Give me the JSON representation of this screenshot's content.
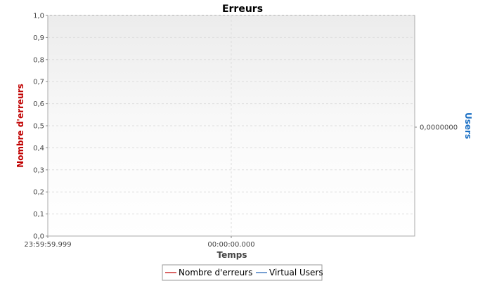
{
  "chart_data": {
    "type": "line",
    "title": "Erreurs",
    "xlabel": "Temps",
    "ylabel_left": "Nombre d'erreurs",
    "ylabel_right": "Users",
    "x_tick_labels": [
      "23:59:59.999",
      "00:00:00.000"
    ],
    "y_left_ticks": [
      0.0,
      0.1,
      0.2,
      0.3,
      0.4,
      0.5,
      0.6,
      0.7,
      0.8,
      0.9,
      1.0
    ],
    "y_left_tick_labels": [
      "0,0",
      "0,1",
      "0,2",
      "0,3",
      "0,4",
      "0,5",
      "0,6",
      "0,7",
      "0,8",
      "0,9",
      "1,0"
    ],
    "ylim_left": [
      0,
      1.0
    ],
    "y_right_ticks": [
      0
    ],
    "y_right_tick_labels": [
      "0,0000000"
    ],
    "grid": true,
    "legend_position": "bottom",
    "series": [
      {
        "name": "Nombre d'erreurs",
        "color": "#c00000",
        "axis": "left",
        "values": []
      },
      {
        "name": "Virtual Users",
        "color": "#1a5fb4",
        "axis": "right",
        "values": []
      }
    ],
    "colors": {
      "left_axis_label": "#c00000",
      "right_axis_label": "#1a6fc4",
      "plot_border": "#aaaaaa",
      "grid": "#dddddd",
      "axis": "#888888"
    }
  }
}
